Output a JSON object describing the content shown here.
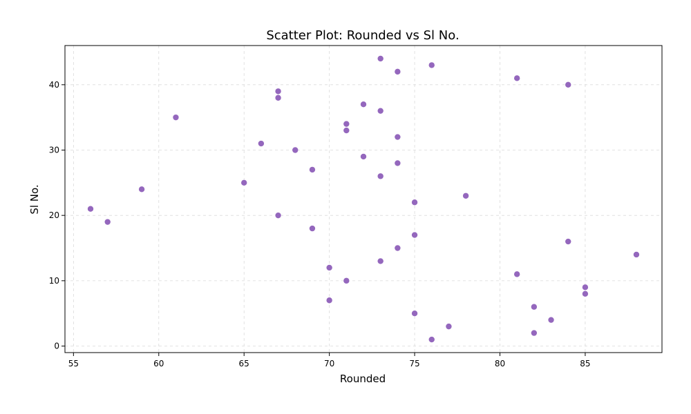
{
  "chart_data": {
    "type": "scatter",
    "title": "Scatter Plot: Rounded vs Sl No.",
    "xlabel": "Rounded",
    "ylabel": "Sl No.",
    "xlim": [
      54.5,
      89.5
    ],
    "ylim": [
      -1,
      46
    ],
    "xticks": [
      55,
      60,
      65,
      70,
      75,
      80,
      85
    ],
    "yticks": [
      0,
      10,
      20,
      30,
      40
    ],
    "grid": true,
    "point_color": "#9467bd",
    "series": [
      {
        "points": [
          {
            "x": 76,
            "y": 1
          },
          {
            "x": 82,
            "y": 2
          },
          {
            "x": 77,
            "y": 3
          },
          {
            "x": 83,
            "y": 4
          },
          {
            "x": 75,
            "y": 5
          },
          {
            "x": 82,
            "y": 6
          },
          {
            "x": 70,
            "y": 7
          },
          {
            "x": 85,
            "y": 8
          },
          {
            "x": 85,
            "y": 9
          },
          {
            "x": 71,
            "y": 10
          },
          {
            "x": 81,
            "y": 11
          },
          {
            "x": 70,
            "y": 12
          },
          {
            "x": 73,
            "y": 13
          },
          {
            "x": 88,
            "y": 14
          },
          {
            "x": 74,
            "y": 15
          },
          {
            "x": 84,
            "y": 16
          },
          {
            "x": 75,
            "y": 17
          },
          {
            "x": 69,
            "y": 18
          },
          {
            "x": 57,
            "y": 19
          },
          {
            "x": 67,
            "y": 20
          },
          {
            "x": 56,
            "y": 21
          },
          {
            "x": 75,
            "y": 22
          },
          {
            "x": 78,
            "y": 23
          },
          {
            "x": 59,
            "y": 24
          },
          {
            "x": 65,
            "y": 25
          },
          {
            "x": 73,
            "y": 26
          },
          {
            "x": 69,
            "y": 27
          },
          {
            "x": 74,
            "y": 28
          },
          {
            "x": 72,
            "y": 29
          },
          {
            "x": 68,
            "y": 30
          },
          {
            "x": 66,
            "y": 31
          },
          {
            "x": 74,
            "y": 32
          },
          {
            "x": 71,
            "y": 33
          },
          {
            "x": 71,
            "y": 34
          },
          {
            "x": 61,
            "y": 35
          },
          {
            "x": 73,
            "y": 36
          },
          {
            "x": 72,
            "y": 37
          },
          {
            "x": 67,
            "y": 38
          },
          {
            "x": 67,
            "y": 39
          },
          {
            "x": 84,
            "y": 40
          },
          {
            "x": 81,
            "y": 41
          },
          {
            "x": 74,
            "y": 42
          },
          {
            "x": 76,
            "y": 43
          },
          {
            "x": 73,
            "y": 44
          }
        ]
      }
    ]
  }
}
